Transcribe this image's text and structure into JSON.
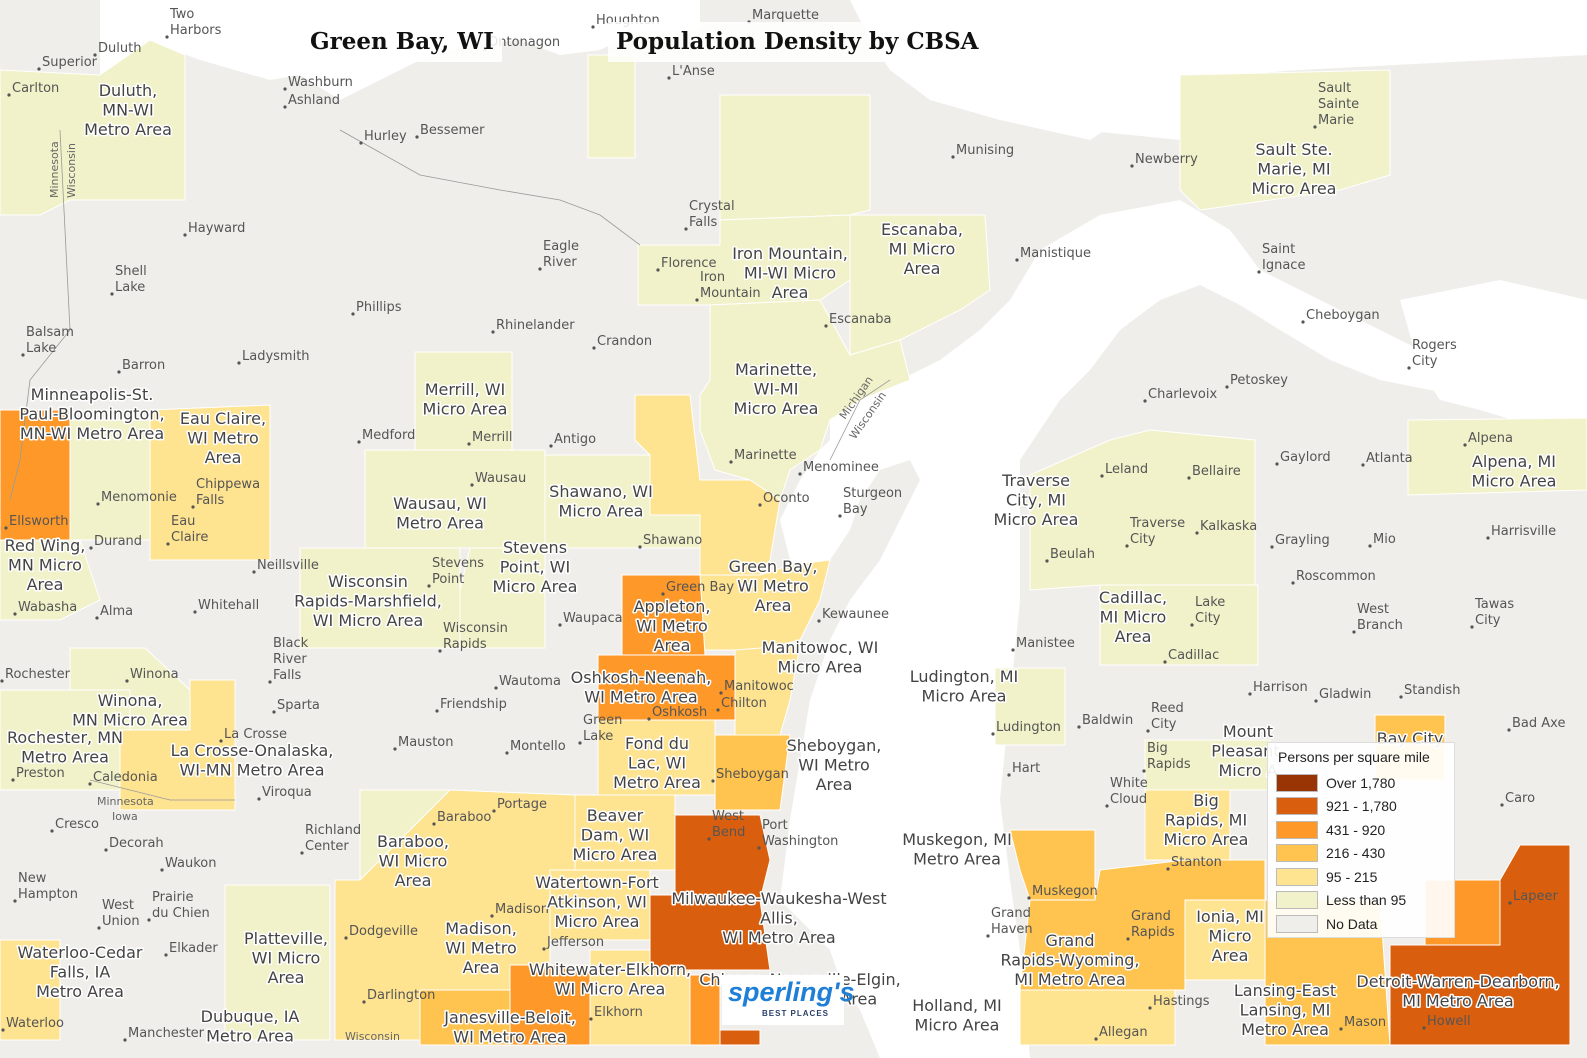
{
  "title_left": "Green Bay, WI",
  "title_right": "Population Density by CBSA",
  "legend": {
    "title": "Persons per square mile",
    "items": [
      {
        "label": "Over 1,780",
        "color": "#993404"
      },
      {
        "label": "921 - 1,780",
        "color": "#d95f0e"
      },
      {
        "label": "431 - 920",
        "color": "#fe9929"
      },
      {
        "label": "216 - 430",
        "color": "#fec44f"
      },
      {
        "label": "95 - 215",
        "color": "#fee391"
      },
      {
        "label": "Less than 95",
        "color": "#f1f2ca"
      },
      {
        "label": "No Data",
        "color": "#efeeea"
      }
    ]
  },
  "logo": {
    "name": "sperling's",
    "tagline": "BEST PLACES"
  },
  "area_labels": {
    "duluth": "Duluth, MN-WI Metro Area",
    "minneapolis": "Minneapolis-St. Paul-Bloomington, MN-WI Metro Area",
    "eau_claire": "Eau Claire, WI Metro Area",
    "red_wing": "Red Wing, MN Micro Area",
    "merrill": "Merrill, WI Micro Area",
    "wausau": "Wausau, WI Metro Area",
    "shawano": "Shawano, WI Micro Area",
    "stevens_point": "Stevens Point, WI Micro Area",
    "wisconsin_rapids": "Wisconsin Rapids-Marshfield, WI Micro Area",
    "iron_mountain": "Iron Mountain, MI-WI Micro Area",
    "escanaba": "Escanaba, MI Micro Area",
    "marinette": "Marinette, WI-MI Micro Area",
    "sault": "Sault Ste. Marie, MI Micro Area",
    "green_bay": "Green Bay, WI Metro Area",
    "appleton": "Appleton, WI Metro Area",
    "oshkosh": "Oshkosh-Neenah, WI Metro Area",
    "manitowoc": "Manitowoc, WI Micro Area",
    "fond_du_lac": "Fond du Lac, WI Metro Area",
    "sheboygan": "Sheboygan, WI Metro Area",
    "winona": "Winona, MN Micro Area",
    "rochester": "Rochester, MN Metro Area",
    "la_crosse": "La Crosse-Onalaska, WI-MN Metro Area",
    "baraboo": "Baraboo, WI Micro Area",
    "beaver_dam": "Beaver Dam, WI Micro Area",
    "watertown": "Watertown-Fort Atkinson, WI Micro Area",
    "madison": "Madison, WI Metro Area",
    "milwaukee": "Milwaukee-Waukesha-West Allis, WI Metro Area",
    "whitewater": "Whitewater-Elkhorn, WI Micro Area",
    "janesville": "Janesville-Beloit, WI Metro Area",
    "platteville": "Platteville, WI Micro Area",
    "waterloo": "Waterloo-Cedar Falls, IA Metro Area",
    "dubuque": "Dubuque, IA Metro Area",
    "chicago": "Chicago-Naperville-Elgin, IL-IN-WI Metro Area",
    "traverse": "Traverse City, MI Micro Area",
    "alpena": "Alpena, MI Micro Area",
    "cadillac": "Cadillac, MI Micro Area",
    "ludington": "Ludington, MI Micro Area",
    "muskegon": "Muskegon, MI Metro Area",
    "grand_rapids": "Grand Rapids-Wyoming, MI Metro Area",
    "big_rapids": "Big Rapids, MI Micro Area",
    "mount_pleasant": "Mount Pleasant, MI Micro Area",
    "ionia": "Ionia, MI Micro Area",
    "lansing": "Lansing-East Lansing, MI Metro Area",
    "holland": "Holland, MI Micro Area",
    "detroit": "Detroit-Warren-Dearborn, MI Metro Area",
    "bay_city": "Bay City"
  },
  "cities": [
    "Two Harbors",
    "Duluth",
    "Superior",
    "Carlton",
    "Washburn",
    "Ashland",
    "Hurley",
    "Bessemer",
    "Ontonagon",
    "Houghton",
    "L'Anse",
    "Marquette",
    "Munising",
    "Newberry",
    "Sault Sainte Marie",
    "Crystal Falls",
    "Florence",
    "Iron Mountain",
    "Escanaba",
    "Manistique",
    "Saint Ignace",
    "Cheboygan",
    "Rogers City",
    "Hayward",
    "Eagle River",
    "Shell Lake",
    "Phillips",
    "Rhinelander",
    "Crandon",
    "Balsam Lake",
    "Barron",
    "Ladysmith",
    "Medford",
    "Merrill",
    "Antigo",
    "Marinette",
    "Menominee",
    "Oconto",
    "Sturgeon Bay",
    "Charlevoix",
    "Petoskey",
    "Gaylord",
    "Atlanta",
    "Alpena",
    "Leland",
    "Bellaire",
    "Traverse City",
    "Kalkaska",
    "Grayling",
    "Mio",
    "Harrisville",
    "Beulah",
    "Roscommon",
    "Wausau",
    "Chippewa Falls",
    "Menomonie",
    "Eau Claire",
    "Ellsworth",
    "Durand",
    "Neillsville",
    "Stevens Point",
    "Shawano",
    "Green Bay",
    "Kewaunee",
    "Wabasha",
    "Alma",
    "Whitehall",
    "Waupaca",
    "Wisconsin Rapids",
    "Black River Falls",
    "Manistee",
    "Lake City",
    "West Branch",
    "Tawas City",
    "Cadillac",
    "Rochester",
    "Winona",
    "Wautoma",
    "Manitowoc",
    "Chilton",
    "Harrison",
    "Gladwin",
    "Standish",
    "Sparta",
    "Friendship",
    "Oshkosh",
    "Ludington",
    "Baldwin",
    "Reed City",
    "Bad Axe",
    "La Crosse",
    "Green Lake",
    "Mauston",
    "Montello",
    "Hart",
    "Big Rapids",
    "Caledonia",
    "Preston",
    "Sheboygan",
    "White Cloud",
    "Viroqua",
    "Portage",
    "Baraboo",
    "West Bend",
    "Port Washington",
    "Cresco",
    "Decorah",
    "Richland Center",
    "Stanton",
    "Caro",
    "Waukon",
    "Muskegon",
    "New Hampton",
    "West Union",
    "Prairie du Chien",
    "Madison",
    "Dodgeville",
    "Grand Haven",
    "Grand Rapids",
    "Lapeer",
    "Elkader",
    "Jefferson",
    "Darlington",
    "Hastings",
    "Elkhorn",
    "Waterloo",
    "Manchester",
    "Allegan",
    "Mason",
    "Howell"
  ]
}
